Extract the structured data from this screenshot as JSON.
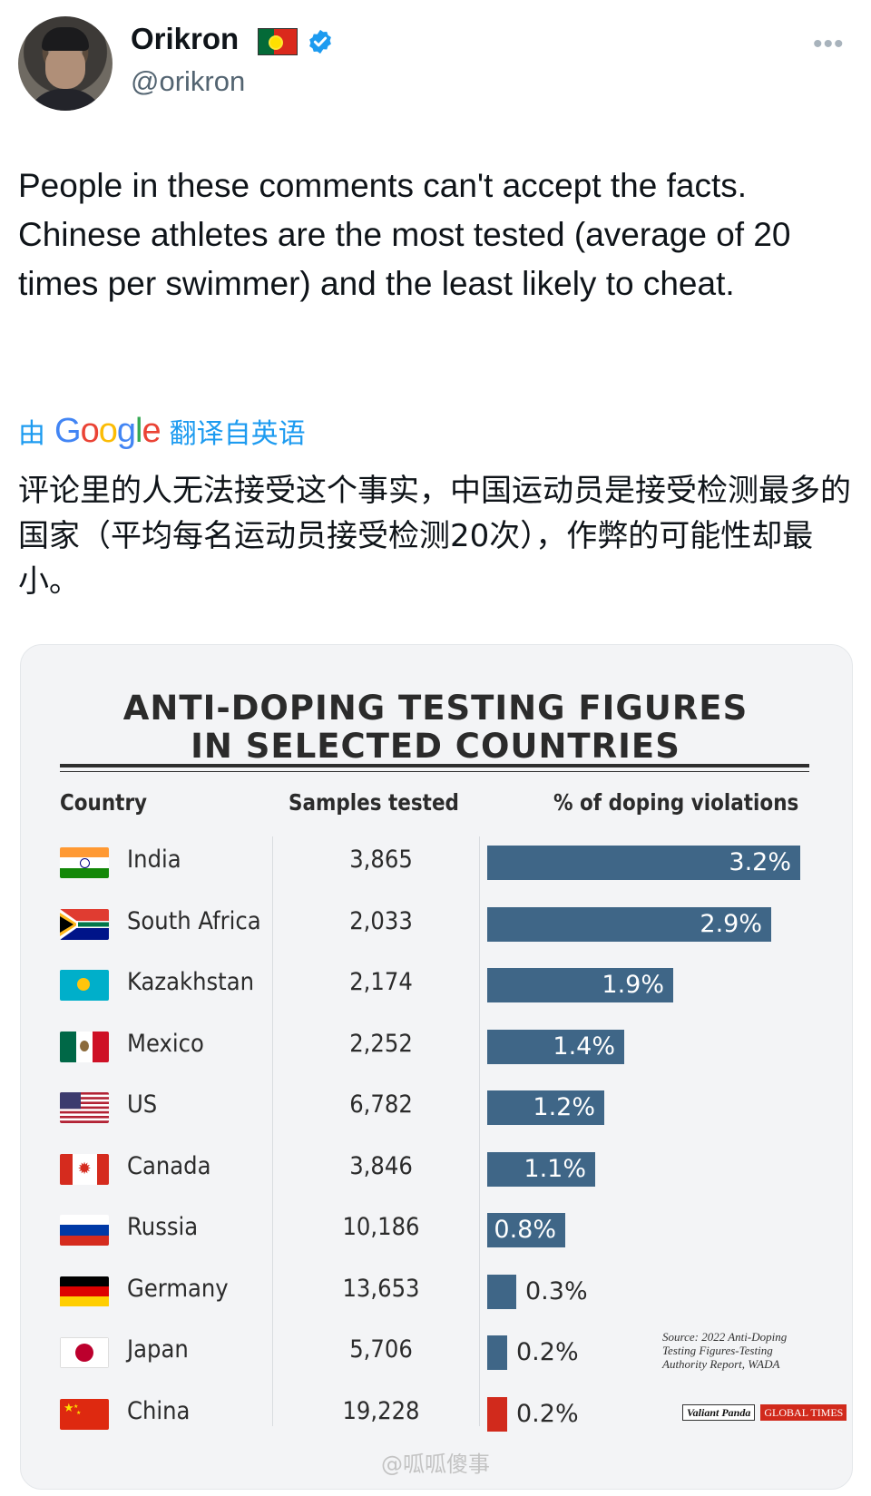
{
  "tweet": {
    "display_name": "Orikron",
    "handle": "@orikron",
    "text": "People in these comments can't accept the facts. Chinese athletes are the most tested (average of 20 times per swimmer) and the least likely to cheat.",
    "translate_prefix": "由",
    "translate_brand": "Google",
    "translate_suffix": "翻译自英语",
    "translated_text": "评论里的人无法接受这个事实，中国运动员是接受检测最多的国家（平均每名运动员接受检测20次），作弊的可能性却最小。",
    "more_icon": "more-icon",
    "verified_icon": "verified-badge-icon",
    "flag_emoji": "portugal-flag"
  },
  "colors": {
    "bar": "#3f6687",
    "bar_china": "#d12a1c",
    "link": "#1d9bf0"
  },
  "chart_data": {
    "type": "bar",
    "title": "ANTI-DOPING TESTING FIGURES IN SELECTED COUNTRIES",
    "title_line1": "ANTI-DOPING TESTING FIGURES",
    "title_line2": "IN SELECTED COUNTRIES",
    "columns": [
      "Country",
      "Samples tested",
      "% of doping violations"
    ],
    "categories": [
      "India",
      "South Africa",
      "Kazakhstan",
      "Mexico",
      "US",
      "Canada",
      "Russia",
      "Germany",
      "Japan",
      "China"
    ],
    "samples_tested": [
      "3,865",
      "2,033",
      "2,174",
      "2,252",
      "6,782",
      "3,846",
      "10,186",
      "13,653",
      "5,706",
      "19,228"
    ],
    "values": [
      3.2,
      2.9,
      1.9,
      1.4,
      1.2,
      1.1,
      0.8,
      0.3,
      0.2,
      0.2
    ],
    "value_labels": [
      "3.2%",
      "2.9%",
      "1.9%",
      "1.4%",
      "1.2%",
      "1.1%",
      "0.8%",
      "0.3%",
      "0.2%",
      "0.2%"
    ],
    "source": "Source: 2022 Anti-Doping Testing Figures-Testing Authority Report, WADA",
    "logo_left": "Valiant Panda",
    "logo_right": "GLOBAL TIMES"
  },
  "watermark": "@呱呱傻事"
}
